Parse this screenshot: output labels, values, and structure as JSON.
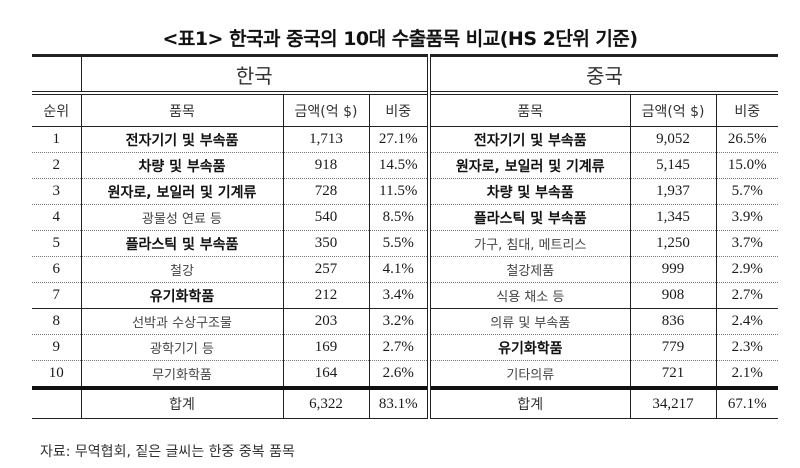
{
  "title": "<표1> 한국과 중국의 10대 수출품목 비교(HS 2단위 기준)",
  "header": {
    "korea": "한국",
    "china": "중국",
    "rank": "순위",
    "item": "품목",
    "amount": "금액(억 $)",
    "share": "비중"
  },
  "rows": [
    {
      "rank": "1",
      "kr_item": "전자기기 및 부속품",
      "kr_bold": true,
      "kr_amount": "1,713",
      "kr_share": "27.1%",
      "cn_item": "전자기기 및 부속품",
      "cn_bold": true,
      "cn_amount": "9,052",
      "cn_share": "26.5%"
    },
    {
      "rank": "2",
      "kr_item": "차량 및 부속품",
      "kr_bold": true,
      "kr_amount": "918",
      "kr_share": "14.5%",
      "cn_item": "원자로, 보일러 및 기계류",
      "cn_bold": true,
      "cn_amount": "5,145",
      "cn_share": "15.0%"
    },
    {
      "rank": "3",
      "kr_item": "원자로, 보일러 및 기계류",
      "kr_bold": true,
      "kr_amount": "728",
      "kr_share": "11.5%",
      "cn_item": "차량 및 부속품",
      "cn_bold": true,
      "cn_amount": "1,937",
      "cn_share": "5.7%"
    },
    {
      "rank": "4",
      "kr_item": "광물성 연료 등",
      "kr_bold": false,
      "kr_amount": "540",
      "kr_share": "8.5%",
      "cn_item": "플라스틱 및 부속품",
      "cn_bold": true,
      "cn_amount": "1,345",
      "cn_share": "3.9%"
    },
    {
      "rank": "5",
      "kr_item": "플라스틱 및 부속품",
      "kr_bold": true,
      "kr_amount": "350",
      "kr_share": "5.5%",
      "cn_item": "가구, 침대, 메트리스",
      "cn_bold": false,
      "cn_amount": "1,250",
      "cn_share": "3.7%"
    },
    {
      "rank": "6",
      "kr_item": "철강",
      "kr_bold": false,
      "kr_amount": "257",
      "kr_share": "4.1%",
      "cn_item": "철강제품",
      "cn_bold": false,
      "cn_amount": "999",
      "cn_share": "2.9%"
    },
    {
      "rank": "7",
      "kr_item": "유기화학품",
      "kr_bold": true,
      "kr_amount": "212",
      "kr_share": "3.4%",
      "cn_item": "식용 채소 등",
      "cn_bold": false,
      "cn_amount": "908",
      "cn_share": "2.7%"
    },
    {
      "rank": "8",
      "kr_item": "선박과 수상구조물",
      "kr_bold": false,
      "kr_amount": "203",
      "kr_share": "3.2%",
      "cn_item": "의류 및 부속품",
      "cn_bold": false,
      "cn_amount": "836",
      "cn_share": "2.4%"
    },
    {
      "rank": "9",
      "kr_item": "광학기기 등",
      "kr_bold": false,
      "kr_amount": "169",
      "kr_share": "2.7%",
      "cn_item": "유기화학품",
      "cn_bold": true,
      "cn_amount": "779",
      "cn_share": "2.3%"
    },
    {
      "rank": "10",
      "kr_item": "무기화학품",
      "kr_bold": false,
      "kr_amount": "164",
      "kr_share": "2.6%",
      "cn_item": "기타의류",
      "cn_bold": false,
      "cn_amount": "721",
      "cn_share": "2.1%"
    }
  ],
  "total": {
    "label": "합계",
    "kr_amount": "6,322",
    "kr_share": "83.1%",
    "cn_label": "합계",
    "cn_amount": "34,217",
    "cn_share": "67.1%"
  },
  "source": "자료: 무역협회, 짙은 글씨는 한중 중복 품목"
}
